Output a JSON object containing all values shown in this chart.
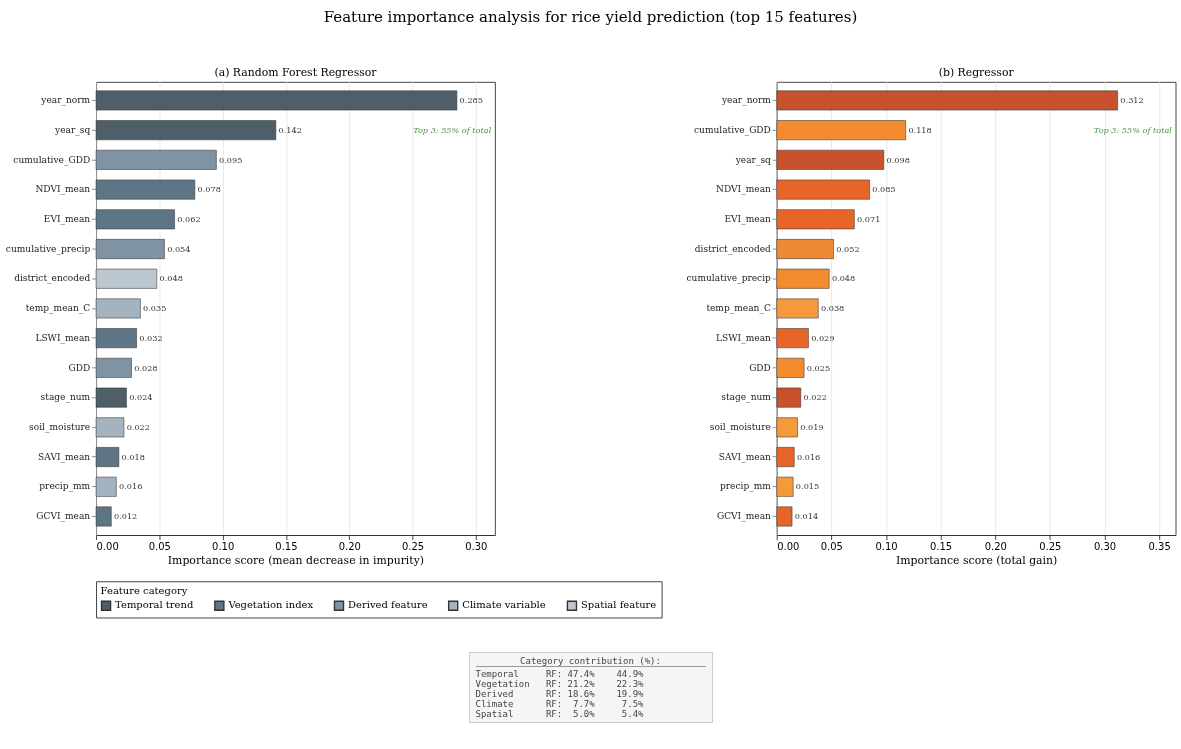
{
  "chart_data": [
    {
      "type": "bar",
      "orientation": "horizontal",
      "title": "Feature importance analysis for rice yield prediction (top 15 features)",
      "subtitle": "(a) Random Forest Regressor",
      "xlabel": "Importance score (mean decrease in impurity)",
      "legend_title": "Feature category",
      "legend": "bottom",
      "grid": "x",
      "data_labels": true,
      "categories": [
        "year_norm",
        "year_sq",
        "cumulative_GDD",
        "NDVI_mean",
        "EVI_mean",
        "cumulative_precip",
        "district_encoded",
        "temp_mean_C",
        "LSWI_mean",
        "GDD",
        "stage_num",
        "soil_moisture",
        "SAVI_mean",
        "precip_mm",
        "GCVI_mean"
      ],
      "xlim": [
        0,
        0.315
      ],
      "xticks": [
        {
          "value": 0,
          "label": "0.00"
        },
        0.05,
        {
          "value": 0.1,
          "label": "0.10"
        },
        0.15,
        {
          "value": 0.2,
          "label": "0.20"
        },
        0.25,
        {
          "value": 0.3,
          "label": "0.30"
        }
      ],
      "series": [
        {
          "name": "Temporal trend",
          "color": "#4f5f6a",
          "values": [
            0.285,
            0.142,
            null,
            null,
            null,
            null,
            null,
            null,
            null,
            null,
            0.024,
            null,
            null,
            null,
            null
          ]
        },
        {
          "name": "Vegetation index",
          "color": "#5e7585",
          "values": [
            null,
            null,
            null,
            0.078,
            0.062,
            null,
            null,
            null,
            0.032,
            null,
            null,
            null,
            0.018,
            null,
            0.012
          ]
        },
        {
          "name": "Derived feature",
          "color": "#7f93a3",
          "values": [
            null,
            null,
            0.095,
            null,
            null,
            0.054,
            null,
            null,
            null,
            0.028,
            null,
            null,
            null,
            null,
            null
          ]
        },
        {
          "name": "Climate variable",
          "color": "#a3b4c0",
          "values": [
            null,
            null,
            null,
            null,
            null,
            null,
            null,
            0.035,
            null,
            null,
            null,
            0.022,
            null,
            0.016,
            null
          ]
        },
        {
          "name": "Spatial feature",
          "color": "#bcc6ce",
          "values": [
            null,
            null,
            null,
            null,
            null,
            null,
            0.048,
            null,
            null,
            null,
            null,
            null,
            null,
            null,
            null
          ]
        }
      ],
      "annotations": [
        "Top 3: 55% of total",
        "Category contribution (%):",
        "Temporal     RF: 47.4%    44.9%",
        "Vegetation   RF: 21.2%    22.3%",
        "Derived      RF: 18.6%    19.9%",
        "Climate      RF:  7.7%     7.5%",
        "Spatial      RF:  5.0%     5.4%"
      ]
    },
    {
      "type": "bar",
      "orientation": "horizontal",
      "subtitle": "(b) Regressor",
      "xlabel": "Importance score (total gain)",
      "grid": "x",
      "data_labels": true,
      "categories": [
        "year_norm",
        "cumulative_GDD",
        "year_sq",
        "NDVI_mean",
        "EVI_mean",
        "district_encoded",
        "cumulative_precip",
        "temp_mean_C",
        "LSWI_mean",
        "GDD",
        "stage_num",
        "soil_moisture",
        "SAVI_mean",
        "precip_mm",
        "GCVI_mean"
      ],
      "xlim": [
        0,
        0.365
      ],
      "xticks": [
        {
          "value": 0,
          "label": "0.00"
        },
        0.05,
        {
          "value": 0.1,
          "label": "0.10"
        },
        0.15,
        {
          "value": 0.2,
          "label": "0.20"
        },
        0.25,
        {
          "value": 0.3,
          "label": "0.30"
        },
        0.35
      ],
      "series": [
        {
          "color": "#c8522e",
          "values": [
            0.312,
            null,
            0.098,
            null,
            null,
            null,
            null,
            null,
            null,
            null,
            0.022,
            null,
            null,
            null,
            null
          ]
        },
        {
          "color": "#e8652a",
          "values": [
            null,
            null,
            null,
            0.085,
            0.071,
            null,
            null,
            null,
            0.029,
            null,
            null,
            null,
            0.016,
            null,
            0.014
          ]
        },
        {
          "color": "#f28c2e",
          "values": [
            null,
            0.118,
            null,
            null,
            null,
            null,
            0.048,
            null,
            null,
            0.025,
            null,
            null,
            null,
            null,
            null
          ]
        },
        {
          "color": "#f59a3c",
          "values": [
            null,
            null,
            null,
            null,
            null,
            null,
            null,
            0.038,
            null,
            null,
            null,
            0.019,
            null,
            0.015,
            null
          ]
        },
        {
          "color": "#ee8a36",
          "values": [
            null,
            null,
            null,
            null,
            null,
            0.052,
            null,
            null,
            null,
            null,
            null,
            null,
            null,
            null,
            null
          ]
        }
      ],
      "annotations": [
        "Top 3: 55% of total"
      ]
    }
  ]
}
